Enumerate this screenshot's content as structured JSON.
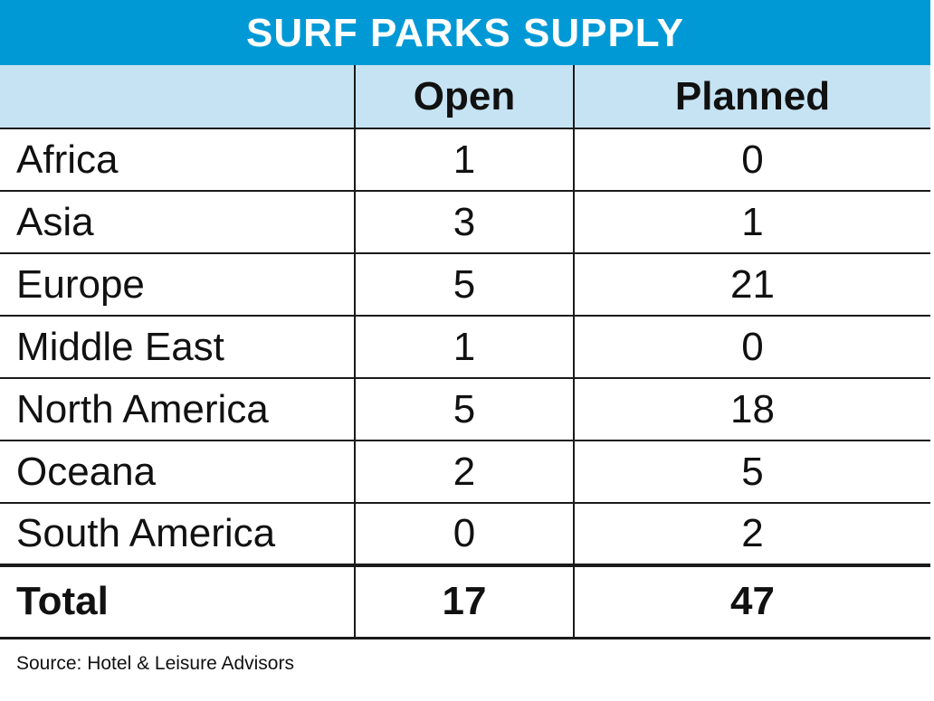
{
  "chart_data": {
    "type": "table",
    "title": "SURF PARKS SUPPLY",
    "columns": [
      "",
      "Open",
      "Planned"
    ],
    "rows": [
      {
        "region": "Africa",
        "open": "1",
        "planned": "0"
      },
      {
        "region": "Asia",
        "open": "3",
        "planned": "1"
      },
      {
        "region": "Europe",
        "open": "5",
        "planned": "21"
      },
      {
        "region": "Middle East",
        "open": "1",
        "planned": "0"
      },
      {
        "region": "North America",
        "open": "5",
        "planned": "18"
      },
      {
        "region": "Oceana",
        "open": "2",
        "planned": "5"
      },
      {
        "region": "South America",
        "open": "0",
        "planned": "2"
      }
    ],
    "total": {
      "label": "Total",
      "open": "17",
      "planned": "47"
    },
    "source": "Source: Hotel & Leisure Advisors",
    "colors": {
      "title_background": "#0099d6",
      "header_background": "#c6e3f4",
      "title_text": "#ffffff"
    }
  }
}
